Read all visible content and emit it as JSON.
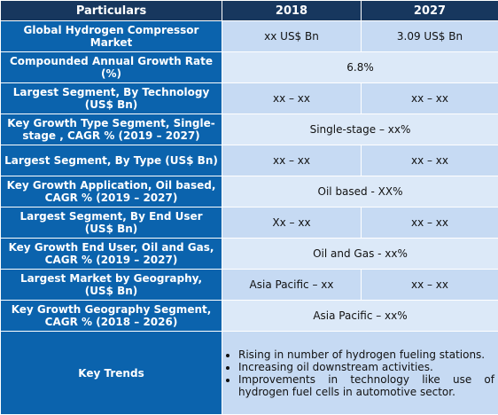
{
  "header": {
    "col1": "Particulars",
    "col2": "2018",
    "col3": "2027"
  },
  "rows": [
    {
      "label": "Global Hydrogen Compressor Market",
      "v2018": "xx US$ Bn",
      "v2027": "3.09 US$ Bn"
    },
    {
      "label": "Compounded Annual Growth Rate (%)",
      "span": "6.8%"
    },
    {
      "label": "Largest Segment, By Technology (US$ Bn)",
      "v2018": "xx – xx",
      "v2027": "xx – xx"
    },
    {
      "label": "Key Growth Type Segment, Single-stage , CAGR % (2019 – 2027)",
      "span": "Single-stage – xx%"
    },
    {
      "label": "Largest Segment, By Type (US$ Bn)",
      "v2018": "xx – xx",
      "v2027": "xx – xx"
    },
    {
      "label": "Key Growth Application, Oil based, CAGR % (2019 – 2027)",
      "span": "Oil based - XX%"
    },
    {
      "label": "Largest Segment, By End User (US$ Bn)",
      "v2018": "Xx – xx",
      "v2027": "xx – xx"
    },
    {
      "label": "Key Growth End User, Oil and Gas, CAGR % (2019 – 2027)",
      "span": "Oil and Gas - xx%"
    },
    {
      "label": "Largest Market by Geography, (US$ Bn)",
      "v2018": "Asia Pacific – xx",
      "v2027": "xx – xx"
    },
    {
      "label": "Key Growth Geography Segment, CAGR % (2018 – 2026)",
      "span": "Asia Pacific – xx%"
    }
  ],
  "trends": {
    "label": "Key Trends",
    "items": [
      "Rising in number of hydrogen fueling stations.",
      "Increasing oil downstream activities.",
      "Improvements in technology like use of hydrogen fuel cells in automotive sector."
    ]
  }
}
